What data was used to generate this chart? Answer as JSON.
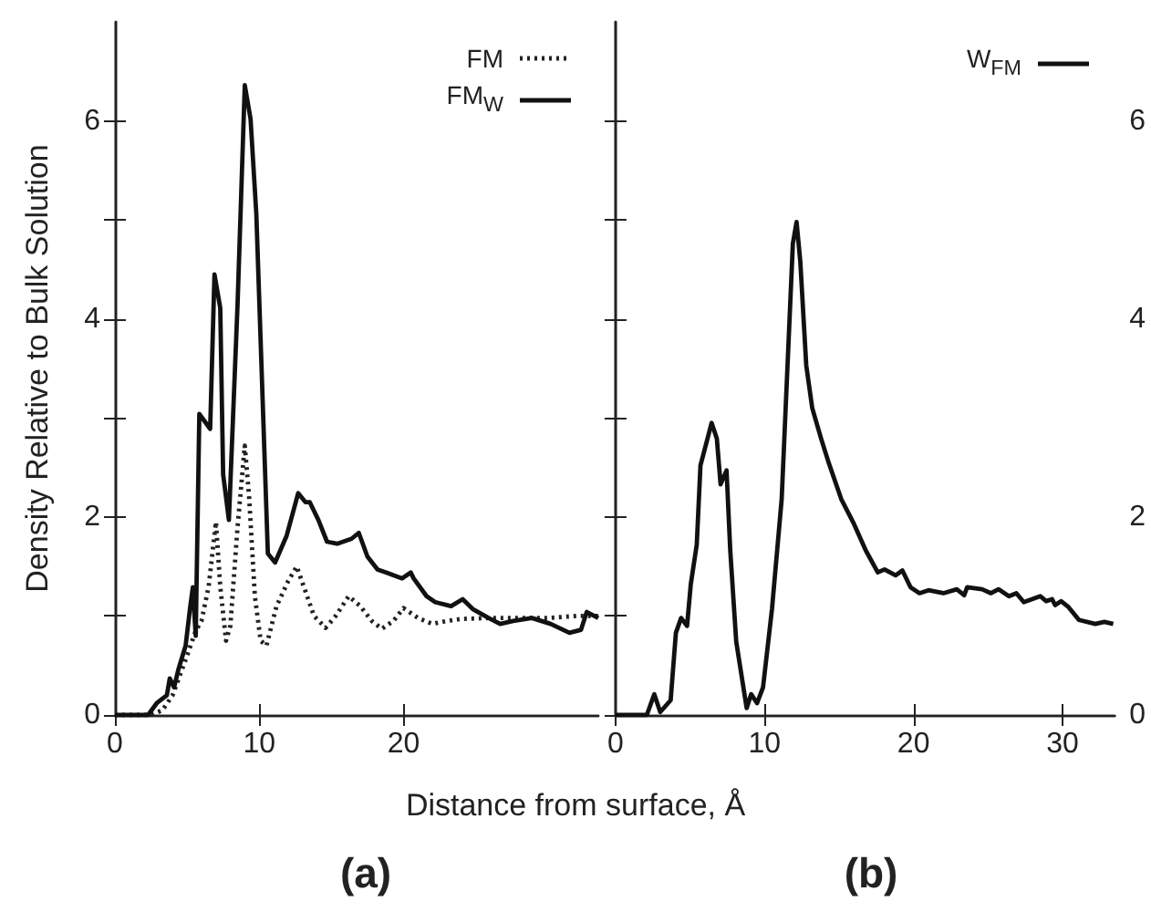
{
  "chart_data": [
    {
      "type": "line",
      "title": "(a)",
      "xlabel": "Distance from surface, Å",
      "ylabel": "Density Relative to Bulk Solution",
      "xlim": [
        0,
        33.5
      ],
      "xticks": [
        0,
        10,
        20
      ],
      "ylim": [
        0,
        7
      ],
      "yticks": [
        0,
        {
          "value": 1,
          "label": null
        },
        2,
        {
          "value": 3,
          "label": null
        },
        4,
        {
          "value": 5,
          "label": null
        },
        6
      ],
      "grid": false,
      "legend": "top right",
      "marker": "none",
      "series": [
        {
          "name": "FM",
          "color": "#222222",
          "line_style": "dotted",
          "x": [
            0,
            2.5,
            3.3,
            4,
            4.5,
            5,
            5.6,
            6,
            6.5,
            7.0,
            7.3,
            7.7,
            8.0,
            8.5,
            9.0,
            9.3,
            9.7,
            10.1,
            10.5,
            11.2,
            12.0,
            12.6,
            13.2,
            13.8,
            14.6,
            15.3,
            16.2,
            17.0,
            17.8,
            18.5,
            19.3,
            20.0,
            21.0,
            22.0,
            23.0,
            24.0,
            26.0,
            28.0,
            30.0,
            32.0,
            33.5
          ],
          "values": [
            0,
            0,
            0.05,
            0.2,
            0.4,
            0.6,
            0.85,
            0.95,
            1.3,
            1.95,
            1.3,
            0.75,
            0.9,
            1.9,
            2.72,
            2.2,
            1.2,
            0.75,
            0.7,
            1.1,
            1.35,
            1.5,
            1.25,
            1.0,
            0.88,
            1.0,
            1.2,
            1.1,
            0.95,
            0.87,
            0.95,
            1.08,
            0.98,
            0.92,
            0.95,
            0.97,
            0.98,
            0.98,
            0.98,
            1.0,
            1.0
          ]
        },
        {
          "name": "FM$_{W}$",
          "color": "#111111",
          "line_style": "solid",
          "x": [
            0,
            2.3,
            2.9,
            3.6,
            3.8,
            4.1,
            4.4,
            4.9,
            5.2,
            5.4,
            5.6,
            5.85,
            6.6,
            6.9,
            7.3,
            7.5,
            7.9,
            8.5,
            9.0,
            9.4,
            9.8,
            10.6,
            11.1,
            11.9,
            12.7,
            13.2,
            13.5,
            14.1,
            14.7,
            15.4,
            16.4,
            16.9,
            17.5,
            18.2,
            18.8,
            19.9,
            20.5,
            20.7,
            21.6,
            22.2,
            23.3,
            24.1,
            24.8,
            25.9,
            26.7,
            27.6,
            28.9,
            30.2,
            31.5,
            32.3,
            32.7,
            33.5
          ],
          "values": [
            0,
            0,
            0.12,
            0.2,
            0.37,
            0.28,
            0.46,
            0.7,
            1.07,
            1.29,
            0.8,
            3.04,
            2.89,
            4.45,
            4.11,
            2.43,
            1.97,
            4.15,
            6.36,
            6.02,
            5.06,
            1.63,
            1.54,
            1.81,
            2.24,
            2.15,
            2.15,
            1.97,
            1.75,
            1.73,
            1.78,
            1.84,
            1.6,
            1.47,
            1.44,
            1.38,
            1.44,
            1.38,
            1.2,
            1.14,
            1.1,
            1.17,
            1.07,
            0.98,
            0.92,
            0.95,
            0.98,
            0.92,
            0.83,
            0.86,
            1.04,
            0.98
          ]
        }
      ]
    },
    {
      "type": "line",
      "title": "(b)",
      "xlim": [
        0,
        33.5
      ],
      "xticks": [
        0,
        10,
        20,
        30
      ],
      "ylim": [
        0,
        7
      ],
      "yticks": [
        0,
        {
          "value": 1,
          "label": null
        },
        2,
        {
          "value": 3,
          "label": null
        },
        4,
        {
          "value": 5,
          "label": null
        },
        6
      ],
      "grid": false,
      "legend": "top right",
      "marker": "none",
      "series": [
        {
          "name": "W$_{FM}$",
          "color": "#111111",
          "line_style": "solid",
          "x": [
            0,
            2.1,
            2.6,
            3.0,
            3.7,
            4.05,
            4.4,
            4.8,
            5.05,
            5.45,
            5.7,
            6.45,
            6.8,
            7.05,
            7.45,
            7.7,
            8.1,
            8.8,
            9.1,
            9.5,
            9.9,
            10.5,
            11.15,
            11.9,
            12.15,
            12.4,
            12.8,
            13.2,
            13.8,
            14.3,
            15.15,
            16.0,
            16.8,
            17.6,
            18.05,
            18.8,
            19.25,
            19.8,
            20.4,
            21.0,
            22.0,
            22.9,
            23.4,
            23.6,
            24.6,
            25.2,
            25.7,
            26.4,
            26.9,
            27.4,
            28.5,
            28.9,
            29.3,
            29.5,
            29.9,
            30.4,
            31.1,
            32.2,
            32.8,
            33.4
          ],
          "values": [
            0,
            0,
            0.21,
            0.03,
            0.15,
            0.83,
            0.98,
            0.9,
            1.32,
            1.72,
            2.52,
            2.95,
            2.79,
            2.33,
            2.47,
            1.66,
            0.74,
            0.07,
            0.21,
            0.12,
            0.28,
            1.07,
            2.18,
            4.76,
            4.98,
            4.58,
            3.53,
            3.1,
            2.79,
            2.55,
            2.18,
            1.93,
            1.66,
            1.44,
            1.47,
            1.41,
            1.46,
            1.29,
            1.23,
            1.26,
            1.23,
            1.27,
            1.21,
            1.29,
            1.27,
            1.23,
            1.27,
            1.2,
            1.23,
            1.14,
            1.2,
            1.15,
            1.17,
            1.11,
            1.15,
            1.09,
            0.96,
            0.92,
            0.94,
            0.92
          ]
        }
      ]
    }
  ]
}
